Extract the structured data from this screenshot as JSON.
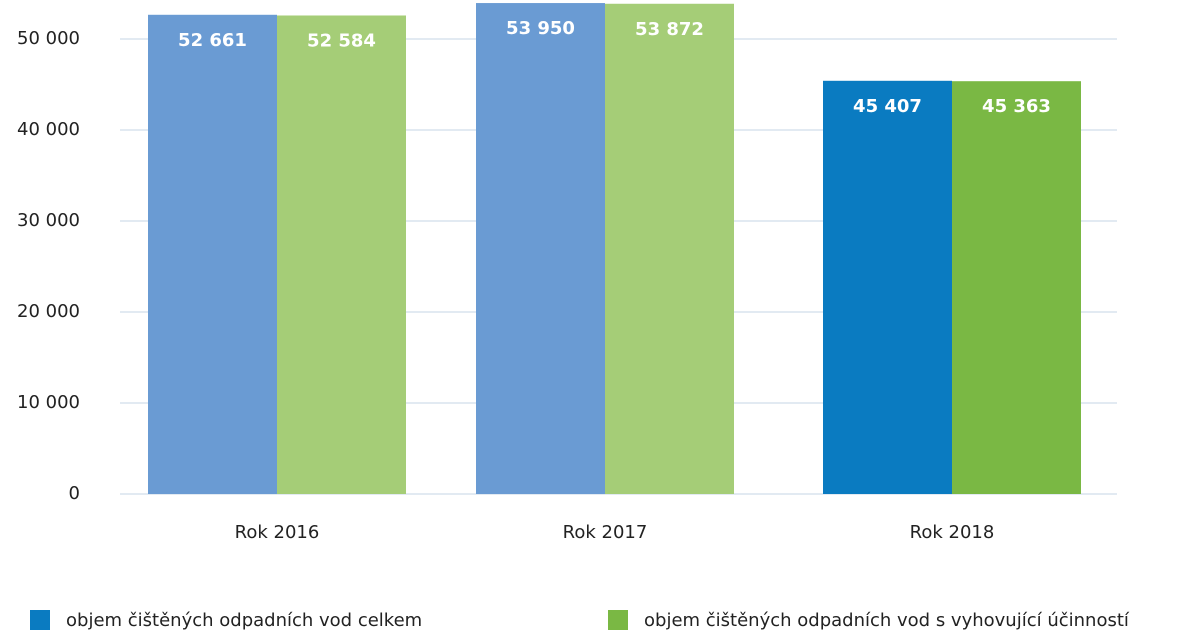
{
  "chart_data": {
    "type": "bar",
    "categories": [
      "Rok 2016",
      "Rok 2017",
      "Rok 2018"
    ],
    "series": [
      {
        "name": "objem čištěných odpadních vod celkem",
        "color": "#0a7bc1",
        "point_colors": [
          "#6a9bd3",
          "#6a9bd3",
          "#0a7bc1"
        ],
        "values": [
          52661,
          53950,
          45407
        ],
        "value_labels": [
          "52 661",
          "53 950",
          "45 407"
        ]
      },
      {
        "name": "objem čištěných odpadních vod s vyhovující účinností",
        "color": "#7ab844",
        "point_colors": [
          "#a5cd77",
          "#a5cd77",
          "#7ab844"
        ],
        "values": [
          52584,
          53872,
          45363
        ],
        "value_labels": [
          "52 584",
          "53 872",
          "45 363"
        ]
      }
    ],
    "ylim": [
      0,
      54000
    ],
    "yticks": [
      0,
      {
        "value": 10000,
        "label": "10 000"
      },
      {
        "value": 20000,
        "label": "20 000"
      },
      {
        "value": 30000,
        "label": "30 000"
      },
      {
        "value": 40000,
        "label": "40 000"
      },
      {
        "value": 50000,
        "label": "50 000"
      }
    ],
    "grid": true,
    "legend": "bottom"
  }
}
